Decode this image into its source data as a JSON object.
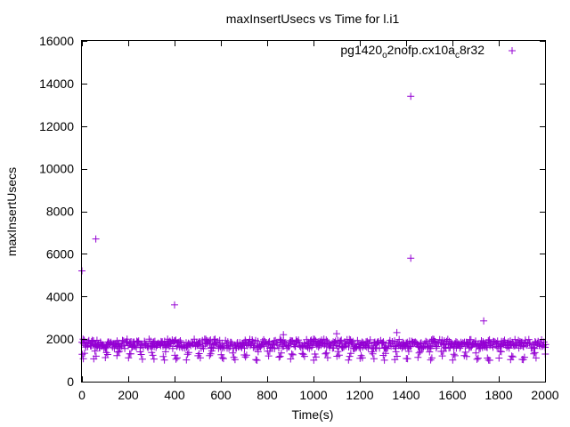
{
  "chart_data": {
    "type": "scatter",
    "title": "maxInsertUsecs vs Time for l.i1",
    "xlabel": "Time(s)",
    "ylabel": "maxInsertUsecs",
    "xlim": [
      0,
      2000
    ],
    "ylim": [
      0,
      16000
    ],
    "x_ticks": [
      0,
      200,
      400,
      600,
      800,
      1000,
      1200,
      1400,
      1600,
      1800,
      2000
    ],
    "y_ticks": [
      0,
      2000,
      4000,
      6000,
      8000,
      10000,
      12000,
      14000,
      16000
    ],
    "grid": false,
    "legend_position": "top-right",
    "series": [
      {
        "name": "pg1420_o2nofp.cx10a_c8r32",
        "name_parts": [
          "pg1420",
          "o",
          "2nofp.cx10a",
          "c",
          "8r32"
        ],
        "marker": "+",
        "color": "#9400d3",
        "outliers": [
          {
            "x": 0,
            "y": 5200
          },
          {
            "x": 60,
            "y": 6700
          },
          {
            "x": 400,
            "y": 3600
          },
          {
            "x": 870,
            "y": 2200
          },
          {
            "x": 1100,
            "y": 2250
          },
          {
            "x": 1360,
            "y": 2300
          },
          {
            "x": 1420,
            "y": 13400
          },
          {
            "x": 1420,
            "y": 5800
          },
          {
            "x": 1735,
            "y": 2850
          }
        ],
        "bulk_pattern": {
          "x_start": 0,
          "x_end": 2000,
          "x_step": 5,
          "baseline_min": 1550,
          "baseline_max": 2000,
          "dip_period": 50,
          "dip_min": 1000,
          "dip_max": 1450
        }
      }
    ]
  }
}
